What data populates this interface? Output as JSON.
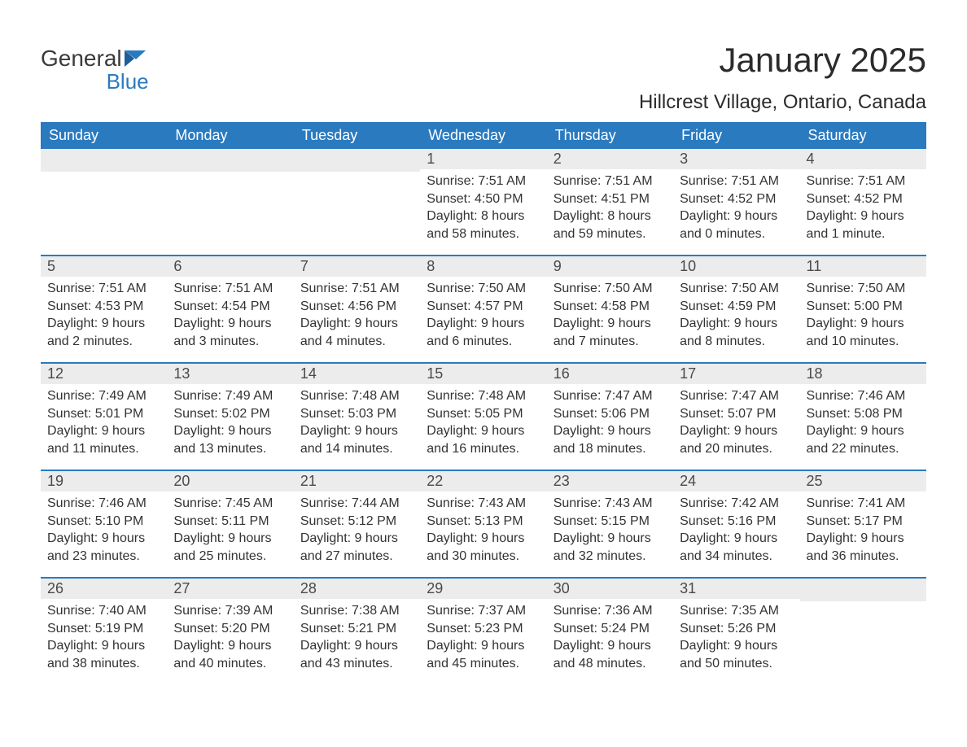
{
  "logo": {
    "general": "General",
    "blue": "Blue"
  },
  "title": "January 2025",
  "location": "Hillcrest Village, Ontario, Canada",
  "colors": {
    "header_bg": "#2a7ac0",
    "header_text": "#ffffff",
    "daynum_bg": "#ececec",
    "daynum_text": "#4a4a4a",
    "body_text": "#333333",
    "title_text": "#2b2b2b",
    "rule": "#2a7ac0",
    "page_bg": "#ffffff"
  },
  "day_headers": [
    "Sunday",
    "Monday",
    "Tuesday",
    "Wednesday",
    "Thursday",
    "Friday",
    "Saturday"
  ],
  "weeks": [
    [
      {
        "day": null
      },
      {
        "day": null
      },
      {
        "day": null
      },
      {
        "day": "1",
        "sunrise": "Sunrise: 7:51 AM",
        "sunset": "Sunset: 4:50 PM",
        "dl1": "Daylight: 8 hours",
        "dl2": "and 58 minutes."
      },
      {
        "day": "2",
        "sunrise": "Sunrise: 7:51 AM",
        "sunset": "Sunset: 4:51 PM",
        "dl1": "Daylight: 8 hours",
        "dl2": "and 59 minutes."
      },
      {
        "day": "3",
        "sunrise": "Sunrise: 7:51 AM",
        "sunset": "Sunset: 4:52 PM",
        "dl1": "Daylight: 9 hours",
        "dl2": "and 0 minutes."
      },
      {
        "day": "4",
        "sunrise": "Sunrise: 7:51 AM",
        "sunset": "Sunset: 4:52 PM",
        "dl1": "Daylight: 9 hours",
        "dl2": "and 1 minute."
      }
    ],
    [
      {
        "day": "5",
        "sunrise": "Sunrise: 7:51 AM",
        "sunset": "Sunset: 4:53 PM",
        "dl1": "Daylight: 9 hours",
        "dl2": "and 2 minutes."
      },
      {
        "day": "6",
        "sunrise": "Sunrise: 7:51 AM",
        "sunset": "Sunset: 4:54 PM",
        "dl1": "Daylight: 9 hours",
        "dl2": "and 3 minutes."
      },
      {
        "day": "7",
        "sunrise": "Sunrise: 7:51 AM",
        "sunset": "Sunset: 4:56 PM",
        "dl1": "Daylight: 9 hours",
        "dl2": "and 4 minutes."
      },
      {
        "day": "8",
        "sunrise": "Sunrise: 7:50 AM",
        "sunset": "Sunset: 4:57 PM",
        "dl1": "Daylight: 9 hours",
        "dl2": "and 6 minutes."
      },
      {
        "day": "9",
        "sunrise": "Sunrise: 7:50 AM",
        "sunset": "Sunset: 4:58 PM",
        "dl1": "Daylight: 9 hours",
        "dl2": "and 7 minutes."
      },
      {
        "day": "10",
        "sunrise": "Sunrise: 7:50 AM",
        "sunset": "Sunset: 4:59 PM",
        "dl1": "Daylight: 9 hours",
        "dl2": "and 8 minutes."
      },
      {
        "day": "11",
        "sunrise": "Sunrise: 7:50 AM",
        "sunset": "Sunset: 5:00 PM",
        "dl1": "Daylight: 9 hours",
        "dl2": "and 10 minutes."
      }
    ],
    [
      {
        "day": "12",
        "sunrise": "Sunrise: 7:49 AM",
        "sunset": "Sunset: 5:01 PM",
        "dl1": "Daylight: 9 hours",
        "dl2": "and 11 minutes."
      },
      {
        "day": "13",
        "sunrise": "Sunrise: 7:49 AM",
        "sunset": "Sunset: 5:02 PM",
        "dl1": "Daylight: 9 hours",
        "dl2": "and 13 minutes."
      },
      {
        "day": "14",
        "sunrise": "Sunrise: 7:48 AM",
        "sunset": "Sunset: 5:03 PM",
        "dl1": "Daylight: 9 hours",
        "dl2": "and 14 minutes."
      },
      {
        "day": "15",
        "sunrise": "Sunrise: 7:48 AM",
        "sunset": "Sunset: 5:05 PM",
        "dl1": "Daylight: 9 hours",
        "dl2": "and 16 minutes."
      },
      {
        "day": "16",
        "sunrise": "Sunrise: 7:47 AM",
        "sunset": "Sunset: 5:06 PM",
        "dl1": "Daylight: 9 hours",
        "dl2": "and 18 minutes."
      },
      {
        "day": "17",
        "sunrise": "Sunrise: 7:47 AM",
        "sunset": "Sunset: 5:07 PM",
        "dl1": "Daylight: 9 hours",
        "dl2": "and 20 minutes."
      },
      {
        "day": "18",
        "sunrise": "Sunrise: 7:46 AM",
        "sunset": "Sunset: 5:08 PM",
        "dl1": "Daylight: 9 hours",
        "dl2": "and 22 minutes."
      }
    ],
    [
      {
        "day": "19",
        "sunrise": "Sunrise: 7:46 AM",
        "sunset": "Sunset: 5:10 PM",
        "dl1": "Daylight: 9 hours",
        "dl2": "and 23 minutes."
      },
      {
        "day": "20",
        "sunrise": "Sunrise: 7:45 AM",
        "sunset": "Sunset: 5:11 PM",
        "dl1": "Daylight: 9 hours",
        "dl2": "and 25 minutes."
      },
      {
        "day": "21",
        "sunrise": "Sunrise: 7:44 AM",
        "sunset": "Sunset: 5:12 PM",
        "dl1": "Daylight: 9 hours",
        "dl2": "and 27 minutes."
      },
      {
        "day": "22",
        "sunrise": "Sunrise: 7:43 AM",
        "sunset": "Sunset: 5:13 PM",
        "dl1": "Daylight: 9 hours",
        "dl2": "and 30 minutes."
      },
      {
        "day": "23",
        "sunrise": "Sunrise: 7:43 AM",
        "sunset": "Sunset: 5:15 PM",
        "dl1": "Daylight: 9 hours",
        "dl2": "and 32 minutes."
      },
      {
        "day": "24",
        "sunrise": "Sunrise: 7:42 AM",
        "sunset": "Sunset: 5:16 PM",
        "dl1": "Daylight: 9 hours",
        "dl2": "and 34 minutes."
      },
      {
        "day": "25",
        "sunrise": "Sunrise: 7:41 AM",
        "sunset": "Sunset: 5:17 PM",
        "dl1": "Daylight: 9 hours",
        "dl2": "and 36 minutes."
      }
    ],
    [
      {
        "day": "26",
        "sunrise": "Sunrise: 7:40 AM",
        "sunset": "Sunset: 5:19 PM",
        "dl1": "Daylight: 9 hours",
        "dl2": "and 38 minutes."
      },
      {
        "day": "27",
        "sunrise": "Sunrise: 7:39 AM",
        "sunset": "Sunset: 5:20 PM",
        "dl1": "Daylight: 9 hours",
        "dl2": "and 40 minutes."
      },
      {
        "day": "28",
        "sunrise": "Sunrise: 7:38 AM",
        "sunset": "Sunset: 5:21 PM",
        "dl1": "Daylight: 9 hours",
        "dl2": "and 43 minutes."
      },
      {
        "day": "29",
        "sunrise": "Sunrise: 7:37 AM",
        "sunset": "Sunset: 5:23 PM",
        "dl1": "Daylight: 9 hours",
        "dl2": "and 45 minutes."
      },
      {
        "day": "30",
        "sunrise": "Sunrise: 7:36 AM",
        "sunset": "Sunset: 5:24 PM",
        "dl1": "Daylight: 9 hours",
        "dl2": "and 48 minutes."
      },
      {
        "day": "31",
        "sunrise": "Sunrise: 7:35 AM",
        "sunset": "Sunset: 5:26 PM",
        "dl1": "Daylight: 9 hours",
        "dl2": "and 50 minutes."
      },
      {
        "day": null
      }
    ]
  ]
}
